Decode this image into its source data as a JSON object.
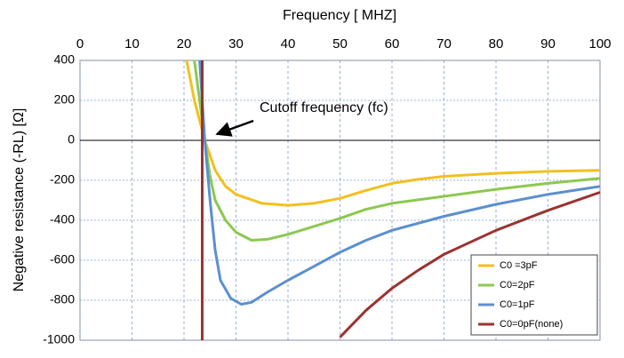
{
  "chart_data": {
    "type": "line",
    "title": "Frequency [ MHZ]",
    "y_label": "Negative resistance (-RL) [Ω]",
    "annotation": "Cutoff frequency (fc)",
    "xlim": [
      0,
      100
    ],
    "xticks": [
      0,
      10,
      20,
      30,
      40,
      50,
      60,
      70,
      80,
      90,
      100
    ],
    "ylim": [
      -1000,
      400
    ],
    "yticks": [
      400,
      200,
      0,
      -200,
      -400,
      -600,
      -800,
      -1000
    ],
    "grid": true,
    "legend": "lower right",
    "series": [
      {
        "name": "C0 =3pF",
        "color": "#f2c01e",
        "x": [
          20.5,
          22,
          24,
          26,
          28,
          30,
          35,
          40,
          45,
          50,
          55,
          60,
          65,
          70,
          80,
          90,
          100
        ],
        "values": [
          400,
          200,
          0,
          -150,
          -230,
          -270,
          -315,
          -325,
          -315,
          -290,
          -250,
          -215,
          -195,
          -180,
          -165,
          -155,
          -150
        ]
      },
      {
        "name": "C0=2pF",
        "color": "#8cc850",
        "x": [
          22,
          23,
          24,
          25,
          26,
          28,
          30,
          33,
          36,
          40,
          45,
          50,
          55,
          60,
          70,
          80,
          90,
          100
        ],
        "values": [
          400,
          200,
          0,
          -180,
          -300,
          -400,
          -460,
          -500,
          -495,
          -470,
          -430,
          -390,
          -345,
          -315,
          -280,
          -245,
          -215,
          -190
        ]
      },
      {
        "name": "C0=1pF",
        "color": "#5b8fd0",
        "x": [
          23,
          23.5,
          24,
          25,
          26,
          27,
          29,
          31,
          33,
          36,
          40,
          45,
          50,
          55,
          60,
          70,
          80,
          90,
          100
        ],
        "values": [
          400,
          200,
          0,
          -300,
          -550,
          -700,
          -790,
          -820,
          -810,
          -760,
          -700,
          -630,
          -560,
          -500,
          -450,
          -380,
          -320,
          -270,
          -230
        ]
      },
      {
        "name": "C0=0pF(none)",
        "color": "#9b3330",
        "x": [
          23.5,
          23.5,
          null,
          50,
          55,
          60,
          65,
          70,
          80,
          90,
          100
        ],
        "values": [
          400,
          -1000,
          null,
          -985,
          -850,
          -740,
          -650,
          -570,
          -450,
          -350,
          -260
        ]
      }
    ]
  }
}
